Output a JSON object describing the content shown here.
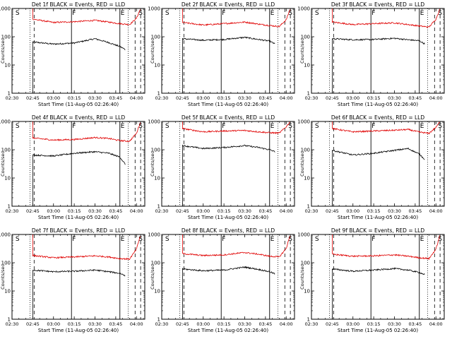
{
  "figure": {
    "x_title": "Start Time (11-Aug-05 02:26:40)",
    "y_title": "Counts/sec",
    "x_ticks": [
      "02:30",
      "02:45",
      "03:00",
      "03:15",
      "03:30",
      "03:45",
      "04:00"
    ],
    "y_ticks": [
      "1",
      "10",
      "100",
      "1000"
    ],
    "colors": {
      "events": "#000000",
      "lld": "#e00000",
      "axes": "#000000"
    }
  },
  "chart_data": [
    {
      "type": "line",
      "title": "Det 1f  BLACK = Events, RED = LLD",
      "xlabel": "Start Time (11-Aug-05 02:26:40)",
      "ylabel": "Counts/sec",
      "x_range": [
        "02:30",
        "04:06"
      ],
      "ylim": [
        1,
        1000
      ],
      "y_scale": "log",
      "markers": [
        {
          "label": "S",
          "time": "02:32"
        },
        {
          "label": "F",
          "time": "03:13"
        },
        {
          "label": "E",
          "time": "03:48"
        },
        {
          "label": "S",
          "time": "04:01"
        }
      ],
      "data_start": "02:43",
      "data_end": "03:54",
      "series": [
        {
          "key": "events",
          "x": [
            "02:45",
            "03:00",
            "03:15",
            "03:30",
            "03:40",
            "03:48",
            "03:52"
          ],
          "y": [
            65,
            55,
            60,
            85,
            62,
            45,
            35
          ]
        },
        {
          "key": "lld",
          "x": [
            "02:45",
            "03:00",
            "03:15",
            "03:30",
            "03:40",
            "03:48",
            "03:55",
            "04:00",
            "04:03"
          ],
          "y": [
            420,
            320,
            340,
            380,
            330,
            290,
            270,
            450,
            1000
          ]
        }
      ]
    },
    {
      "type": "line",
      "title": "Det 2f  BLACK = Events, RED = LLD",
      "xlabel": "Start Time (11-Aug-05 02:26:40)",
      "ylabel": "Counts/sec",
      "x_range": [
        "02:30",
        "04:06"
      ],
      "ylim": [
        1,
        1000
      ],
      "y_scale": "log",
      "markers": [
        {
          "label": "S",
          "time": "02:32"
        },
        {
          "label": "F",
          "time": "03:13"
        },
        {
          "label": "E",
          "time": "03:48"
        },
        {
          "label": "S",
          "time": "04:01"
        }
      ],
      "data_start": "02:43",
      "data_end": "03:54",
      "series": [
        {
          "key": "events",
          "x": [
            "02:45",
            "03:00",
            "03:15",
            "03:30",
            "03:40",
            "03:48",
            "03:52"
          ],
          "y": [
            85,
            75,
            80,
            95,
            80,
            70,
            55
          ]
        },
        {
          "key": "lld",
          "x": [
            "02:45",
            "03:00",
            "03:15",
            "03:30",
            "03:40",
            "03:48",
            "03:55",
            "04:00",
            "04:03"
          ],
          "y": [
            320,
            260,
            290,
            330,
            280,
            250,
            230,
            400,
            1000
          ]
        }
      ]
    },
    {
      "type": "line",
      "title": "Det 3f  BLACK = Events, RED = LLD",
      "xlabel": "Start Time (11-Aug-05 02:26:40)",
      "ylabel": "Counts/sec",
      "x_range": [
        "02:30",
        "04:06"
      ],
      "ylim": [
        1,
        1000
      ],
      "y_scale": "log",
      "markers": [
        {
          "label": "S",
          "time": "02:32"
        },
        {
          "label": "F",
          "time": "03:13"
        },
        {
          "label": "E",
          "time": "03:48"
        },
        {
          "label": "S",
          "time": "04:01"
        }
      ],
      "data_start": "02:43",
      "data_end": "03:54",
      "series": [
        {
          "key": "events",
          "x": [
            "02:45",
            "03:00",
            "03:15",
            "03:30",
            "03:40",
            "03:48",
            "03:52"
          ],
          "y": [
            85,
            78,
            80,
            88,
            78,
            72,
            55
          ]
        },
        {
          "key": "lld",
          "x": [
            "02:45",
            "03:00",
            "03:15",
            "03:30",
            "03:40",
            "03:48",
            "03:55",
            "04:00",
            "04:03"
          ],
          "y": [
            330,
            270,
            290,
            310,
            270,
            240,
            220,
            420,
            1000
          ]
        }
      ]
    },
    {
      "type": "line",
      "title": "Det 4f  BLACK = Events, RED = LLD",
      "xlabel": "Start Time (11-Aug-05 02:26:40)",
      "ylabel": "Counts/sec",
      "x_range": [
        "02:30",
        "04:06"
      ],
      "ylim": [
        1,
        1000
      ],
      "y_scale": "log",
      "markers": [
        {
          "label": "S",
          "time": "02:32"
        },
        {
          "label": "F",
          "time": "03:13"
        },
        {
          "label": "E",
          "time": "03:48"
        },
        {
          "label": "S",
          "time": "04:01"
        }
      ],
      "data_start": "02:43",
      "data_end": "03:54",
      "series": [
        {
          "key": "events",
          "x": [
            "02:45",
            "03:00",
            "03:15",
            "03:30",
            "03:40",
            "03:48",
            "03:52"
          ],
          "y": [
            65,
            60,
            75,
            85,
            75,
            55,
            30
          ]
        },
        {
          "key": "lld",
          "x": [
            "02:45",
            "03:00",
            "03:15",
            "03:30",
            "03:40",
            "03:48",
            "03:55",
            "04:00",
            "04:03"
          ],
          "y": [
            260,
            220,
            230,
            270,
            250,
            210,
            200,
            380,
            1000
          ]
        }
      ]
    },
    {
      "type": "line",
      "title": "Det 5f  BLACK = Events, RED = LLD",
      "xlabel": "Start Time (11-Aug-05 02:26:40)",
      "ylabel": "Counts/sec",
      "x_range": [
        "02:30",
        "04:06"
      ],
      "ylim": [
        1,
        1000
      ],
      "y_scale": "log",
      "markers": [
        {
          "label": "S",
          "time": "02:32"
        },
        {
          "label": "F",
          "time": "03:13"
        },
        {
          "label": "E",
          "time": "03:48"
        },
        {
          "label": "S",
          "time": "04:01"
        }
      ],
      "data_start": "02:43",
      "data_end": "03:54",
      "series": [
        {
          "key": "events",
          "x": [
            "02:45",
            "03:00",
            "03:15",
            "03:30",
            "03:40",
            "03:48",
            "03:52"
          ],
          "y": [
            140,
            110,
            120,
            140,
            120,
            100,
            85
          ]
        },
        {
          "key": "lld",
          "x": [
            "02:45",
            "03:00",
            "03:15",
            "03:30",
            "03:40",
            "03:48",
            "03:55",
            "04:00",
            "04:03"
          ],
          "y": [
            560,
            430,
            460,
            480,
            430,
            400,
            390,
            650,
            1000
          ]
        }
      ]
    },
    {
      "type": "line",
      "title": "Det 6f  BLACK = Events, RED = LLD",
      "xlabel": "Start Time (11-Aug-05 02:26:40)",
      "ylabel": "Counts/sec",
      "x_range": [
        "02:30",
        "04:06"
      ],
      "ylim": [
        1,
        1000
      ],
      "y_scale": "log",
      "markers": [
        {
          "label": "S",
          "time": "02:32"
        },
        {
          "label": "F",
          "time": "03:13"
        },
        {
          "label": "E",
          "time": "03:48"
        },
        {
          "label": "S",
          "time": "04:01"
        }
      ],
      "data_start": "02:43",
      "data_end": "03:54",
      "series": [
        {
          "key": "events",
          "x": [
            "02:45",
            "03:00",
            "03:15",
            "03:30",
            "03:40",
            "03:48",
            "03:52"
          ],
          "y": [
            95,
            65,
            75,
            95,
            110,
            70,
            45
          ]
        },
        {
          "key": "lld",
          "x": [
            "02:45",
            "03:00",
            "03:15",
            "03:30",
            "03:40",
            "03:48",
            "03:55",
            "04:00",
            "04:03"
          ],
          "y": [
            560,
            430,
            460,
            490,
            520,
            420,
            380,
            620,
            1000
          ]
        }
      ]
    },
    {
      "type": "line",
      "title": "Det 7f  BLACK = Events, RED = LLD",
      "xlabel": "Start Time (11-Aug-05 02:26:40)",
      "ylabel": "Counts/sec",
      "x_range": [
        "02:30",
        "04:06"
      ],
      "ylim": [
        1,
        1000
      ],
      "y_scale": "log",
      "markers": [
        {
          "label": "S",
          "time": "02:32"
        },
        {
          "label": "F",
          "time": "03:13"
        },
        {
          "label": "E",
          "time": "03:48"
        },
        {
          "label": "S",
          "time": "04:01"
        }
      ],
      "data_start": "02:43",
      "data_end": "03:54",
      "series": [
        {
          "key": "events",
          "x": [
            "02:45",
            "03:00",
            "03:15",
            "03:30",
            "03:40",
            "03:48",
            "03:52"
          ],
          "y": [
            55,
            48,
            50,
            55,
            48,
            42,
            35
          ]
        },
        {
          "key": "lld",
          "x": [
            "02:45",
            "03:00",
            "03:15",
            "03:30",
            "03:40",
            "03:48",
            "03:55",
            "04:00",
            "04:03"
          ],
          "y": [
            180,
            150,
            160,
            175,
            160,
            140,
            135,
            300,
            1000
          ]
        }
      ]
    },
    {
      "type": "line",
      "title": "Det 8f  BLACK = Events, RED = LLD",
      "xlabel": "Start Time (11-Aug-05 02:26:40)",
      "ylabel": "Counts/sec",
      "x_range": [
        "02:30",
        "04:06"
      ],
      "ylim": [
        1,
        1000
      ],
      "y_scale": "log",
      "markers": [
        {
          "label": "S",
          "time": "02:32"
        },
        {
          "label": "F",
          "time": "03:13"
        },
        {
          "label": "E",
          "time": "03:48"
        },
        {
          "label": "S",
          "time": "04:01"
        }
      ],
      "data_start": "02:43",
      "data_end": "03:54",
      "series": [
        {
          "key": "events",
          "x": [
            "02:45",
            "03:00",
            "03:15",
            "03:30",
            "03:40",
            "03:48",
            "03:52"
          ],
          "y": [
            60,
            52,
            55,
            70,
            58,
            48,
            40
          ]
        },
        {
          "key": "lld",
          "x": [
            "02:45",
            "03:00",
            "03:15",
            "03:30",
            "03:40",
            "03:48",
            "03:55",
            "04:00",
            "04:03"
          ],
          "y": [
            210,
            180,
            190,
            230,
            200,
            170,
            160,
            320,
            1000
          ]
        }
      ]
    },
    {
      "type": "line",
      "title": "Det 9f  BLACK = Events, RED = LLD",
      "xlabel": "Start Time (11-Aug-05 02:26:40)",
      "ylabel": "Counts/sec",
      "x_range": [
        "02:30",
        "04:06"
      ],
      "ylim": [
        1,
        1000
      ],
      "y_scale": "log",
      "markers": [
        {
          "label": "S",
          "time": "02:32"
        },
        {
          "label": "F",
          "time": "03:13"
        },
        {
          "label": "E",
          "time": "03:48"
        },
        {
          "label": "S",
          "time": "04:01"
        }
      ],
      "data_start": "02:43",
      "data_end": "03:54",
      "series": [
        {
          "key": "events",
          "x": [
            "02:45",
            "03:00",
            "03:15",
            "03:30",
            "03:40",
            "03:48",
            "03:52"
          ],
          "y": [
            60,
            50,
            55,
            62,
            55,
            45,
            38
          ]
        },
        {
          "key": "lld",
          "x": [
            "02:45",
            "03:00",
            "03:15",
            "03:30",
            "03:40",
            "03:48",
            "03:55",
            "04:00",
            "04:03"
          ],
          "y": [
            200,
            170,
            175,
            190,
            170,
            150,
            140,
            300,
            1000
          ]
        }
      ]
    }
  ]
}
